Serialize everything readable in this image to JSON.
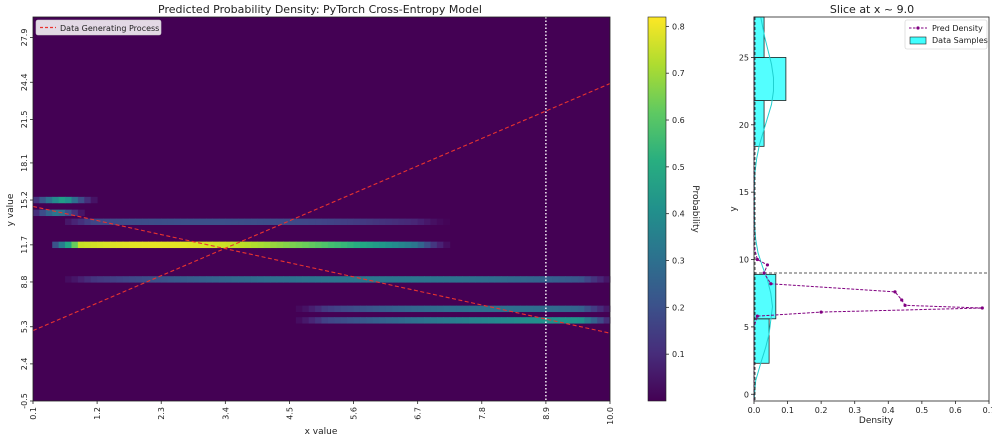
{
  "chart_data": [
    {
      "type": "heatmap",
      "title": "Predicted Probability Density: PyTorch Cross-Entropy Model",
      "xlabel": "x value",
      "ylabel": "y value",
      "xlim": [
        0.1,
        10.0
      ],
      "ylim": [
        -0.5,
        29.5
      ],
      "x_ticks": [
        "0.1",
        "1.2",
        "2.3",
        "3.4",
        "4.5",
        "5.6",
        "6.7",
        "7.8",
        "8.9",
        "10.0"
      ],
      "y_ticks": [
        "-0.5",
        "2.4",
        "5.3",
        "8.8",
        "11.7",
        "15.2",
        "18.1",
        "21.5",
        "24.4",
        "27.9"
      ],
      "x_tick_values": [
        0.1,
        1.2,
        2.3,
        3.4,
        4.5,
        5.6,
        6.7,
        7.8,
        8.9,
        10.0
      ],
      "y_tick_values": [
        -0.5,
        2.4,
        5.3,
        8.8,
        11.7,
        15.2,
        18.1,
        21.5,
        24.4,
        27.9
      ],
      "colorbar": {
        "label": "Probability",
        "range": [
          0,
          0.82
        ],
        "ticks": [
          "0.1",
          "0.2",
          "0.3",
          "0.4",
          "0.5",
          "0.6",
          "0.7",
          "0.8"
        ],
        "tick_values": [
          0.1,
          0.2,
          0.3,
          0.4,
          0.5,
          0.6,
          0.7,
          0.8
        ],
        "colormap": "viridis"
      },
      "legend": {
        "position": "top-left",
        "entries": [
          {
            "label": "Data Generating Process",
            "color": "#e8332f",
            "style": "dashed"
          }
        ]
      },
      "bands": [
        {
          "y": 15.2,
          "x_from": 0.1,
          "x_to": 1.2,
          "peak": 0.52,
          "x_peak": 0.2
        },
        {
          "y": 14.2,
          "x_from": 0.1,
          "x_to": 1.0,
          "peak": 0.45,
          "x_peak": 0.2
        },
        {
          "y": 13.5,
          "x_from": 0.6,
          "x_to": 7.2,
          "peak": 0.2,
          "x_peak": 3.0
        },
        {
          "y": 11.7,
          "x_from": 0.4,
          "x_to": 7.2,
          "peak": 0.79,
          "x_peak": 2.2
        },
        {
          "y": 9.0,
          "x_from": 0.6,
          "x_to": 10.0,
          "peak": 0.32,
          "x_peak": 6.0
        },
        {
          "y": 6.7,
          "x_from": 4.6,
          "x_to": 10.0,
          "peak": 0.3,
          "x_peak": 8.0
        },
        {
          "y": 5.8,
          "x_from": 4.6,
          "x_to": 10.0,
          "peak": 0.42,
          "x_peak": 10.0
        }
      ],
      "series": [
        {
          "name": "Data Generating Process",
          "x": [
            0.1,
            10.0
          ],
          "y": [
            5.0,
            24.3
          ]
        },
        {
          "name": "Data Generating Process",
          "x": [
            0.1,
            10.0
          ],
          "y": [
            14.7,
            4.8
          ]
        }
      ],
      "vline": {
        "x": 8.9,
        "color": "#ffffff",
        "style": "dotted"
      }
    },
    {
      "type": "bar",
      "title": "Slice at x ~ 9.0",
      "xlabel": "Density",
      "ylabel": "y",
      "xlim": [
        0,
        0.7
      ],
      "ylim": [
        -0.5,
        28
      ],
      "x_ticks": [
        "0.0",
        "0.1",
        "0.2",
        "0.3",
        "0.4",
        "0.5",
        "0.6",
        "0.7"
      ],
      "x_tick_values": [
        0,
        0.1,
        0.2,
        0.3,
        0.4,
        0.5,
        0.6,
        0.7
      ],
      "y_ticks": [
        "0",
        "5",
        "10",
        "15",
        "20",
        "25"
      ],
      "y_tick_values": [
        0,
        5,
        10,
        15,
        20,
        25
      ],
      "legend": {
        "position": "top-right",
        "entries": [
          {
            "label": "Pred Density",
            "color": "#800080",
            "style": "dashed-marker"
          },
          {
            "label": "Data Samples",
            "color": "#40ffff",
            "style": "patch"
          }
        ]
      },
      "histogram": [
        {
          "y0": 2.3,
          "y1": 5.6,
          "value": 0.045
        },
        {
          "y0": 5.6,
          "y1": 8.9,
          "value": 0.065
        },
        {
          "y0": 18.4,
          "y1": 21.8,
          "value": 0.03
        },
        {
          "y0": 21.8,
          "y1": 25.0,
          "value": 0.095
        },
        {
          "y0": 25.0,
          "y1": 28.0,
          "value": 0.03
        }
      ],
      "kde": {
        "y": [
          -0.5,
          1,
          2.3,
          3.5,
          4.5,
          5.5,
          6.5,
          7.5,
          8.5,
          9.5,
          10.5,
          11.5,
          12.5,
          13.5,
          14.5,
          15.5,
          16.5,
          17.5,
          18.5,
          19.5,
          20.5,
          21.5,
          22.5,
          23.5,
          24.5,
          25.5,
          26.5,
          27.5,
          28
        ],
        "x": [
          0.0,
          0.005,
          0.02,
          0.035,
          0.045,
          0.05,
          0.055,
          0.05,
          0.04,
          0.025,
          0.012,
          0.005,
          0.002,
          0.001,
          0.001,
          0.001,
          0.003,
          0.008,
          0.016,
          0.028,
          0.04,
          0.052,
          0.058,
          0.058,
          0.052,
          0.042,
          0.032,
          0.024,
          0.02
        ]
      },
      "pred_density": {
        "y": [
          -0.5,
          1,
          2,
          3,
          4,
          5,
          5.8,
          6.1,
          6.4,
          6.6,
          7.0,
          7.6,
          8.2,
          9.0,
          9.6,
          10.0,
          11,
          12,
          14,
          17,
          20,
          23,
          26,
          28
        ],
        "x": [
          0.0,
          0.0,
          0.0,
          0.0,
          0.0,
          0.0,
          0.01,
          0.2,
          0.68,
          0.45,
          0.44,
          0.42,
          0.05,
          0.03,
          0.04,
          0.01,
          0.0,
          0.0,
          0.0,
          0.0,
          0.0,
          0.0,
          0.0,
          0.0
        ]
      },
      "hline": {
        "y": 9.0,
        "color": "#222222",
        "style": "dashed"
      }
    }
  ]
}
